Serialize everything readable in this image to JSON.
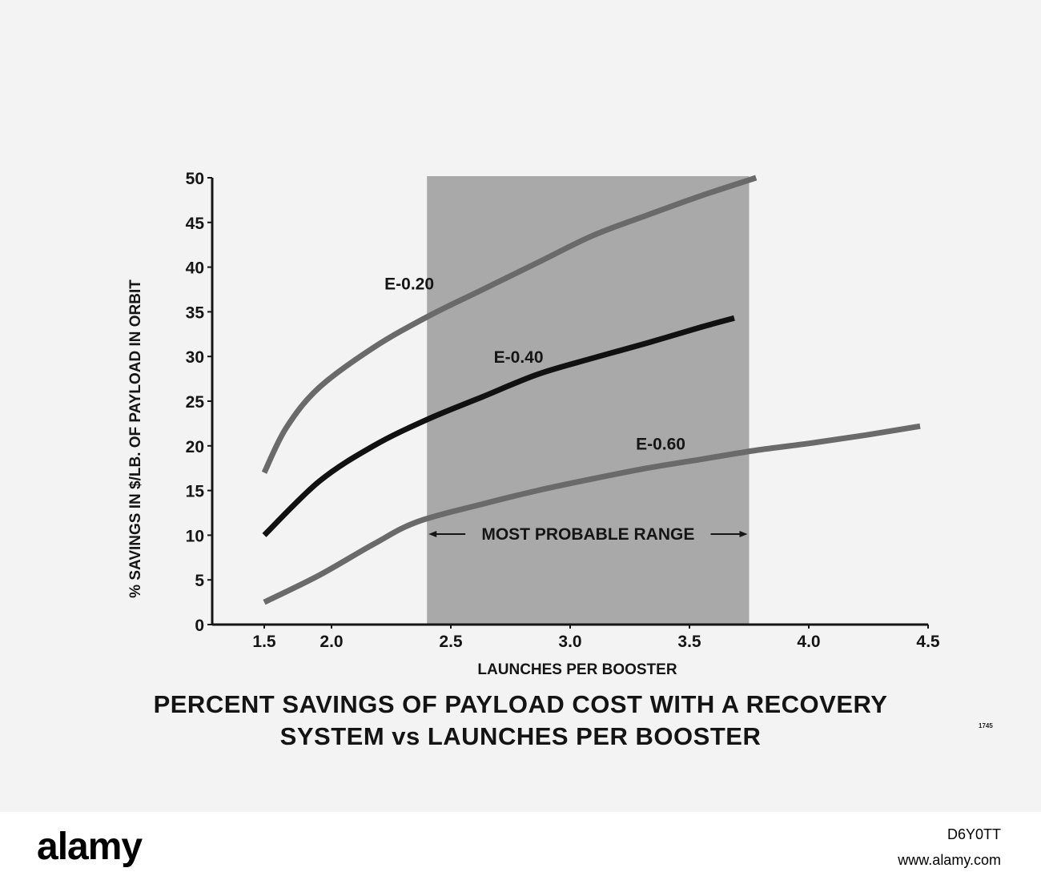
{
  "chart_data": {
    "type": "line",
    "title_lines": [
      "PERCENT SAVINGS OF PAYLOAD COST WITH A RECOVERY",
      "SYSTEM vs LAUNCHES PER BOOSTER"
    ],
    "xlabel": "LAUNCHES PER BOOSTER",
    "ylabel": "% SAVINGS IN $/LB. OF PAYLOAD IN ORBIT",
    "xlim": [
      1.5,
      4.5
    ],
    "ylim": [
      0,
      50
    ],
    "x_ticks": [
      "1.5",
      "2.0",
      "2.5",
      "3.0",
      "3.5",
      "4.0",
      "4.5"
    ],
    "y_ticks": [
      "0",
      "5",
      "10",
      "15",
      "20",
      "25",
      "30",
      "35",
      "40",
      "45",
      "50"
    ],
    "grid": false,
    "shaded_range": {
      "x_start": 2.4,
      "x_end": 3.75,
      "label": "MOST PROBABLE RANGE"
    },
    "series": [
      {
        "name": "E-0.20",
        "color": "#6a6a6a",
        "x": [
          1.5,
          1.6,
          1.75,
          2.0,
          2.25,
          2.5,
          2.75,
          3.0,
          3.25,
          3.5,
          3.75
        ],
        "y": [
          17,
          22,
          26.5,
          31,
          34.5,
          37.5,
          40.5,
          43.5,
          45.8,
          48,
          50
        ]
      },
      {
        "name": "E-0.40",
        "color": "#111111",
        "x": [
          1.5,
          1.75,
          2.0,
          2.25,
          2.5,
          2.75,
          3.0,
          3.25,
          3.5,
          3.65
        ],
        "y": [
          10,
          16,
          20,
          23,
          25.5,
          28,
          29.8,
          31.5,
          33.3,
          34.3
        ]
      },
      {
        "name": "E-0.60",
        "color": "#6a6a6a",
        "x": [
          1.5,
          1.75,
          2.0,
          2.2,
          2.5,
          2.75,
          3.0,
          3.25,
          3.5,
          3.75,
          4.0,
          4.25,
          4.5
        ],
        "y": [
          2.5,
          5.5,
          9,
          11.5,
          13.5,
          15,
          16.3,
          17.5,
          18.5,
          19.5,
          20.3,
          21.2,
          22.2
        ]
      }
    ]
  },
  "plate_id": "1745",
  "watermark": {
    "logo": "alamy",
    "image_id": "D6Y0TT",
    "url": "www.alamy.com"
  }
}
